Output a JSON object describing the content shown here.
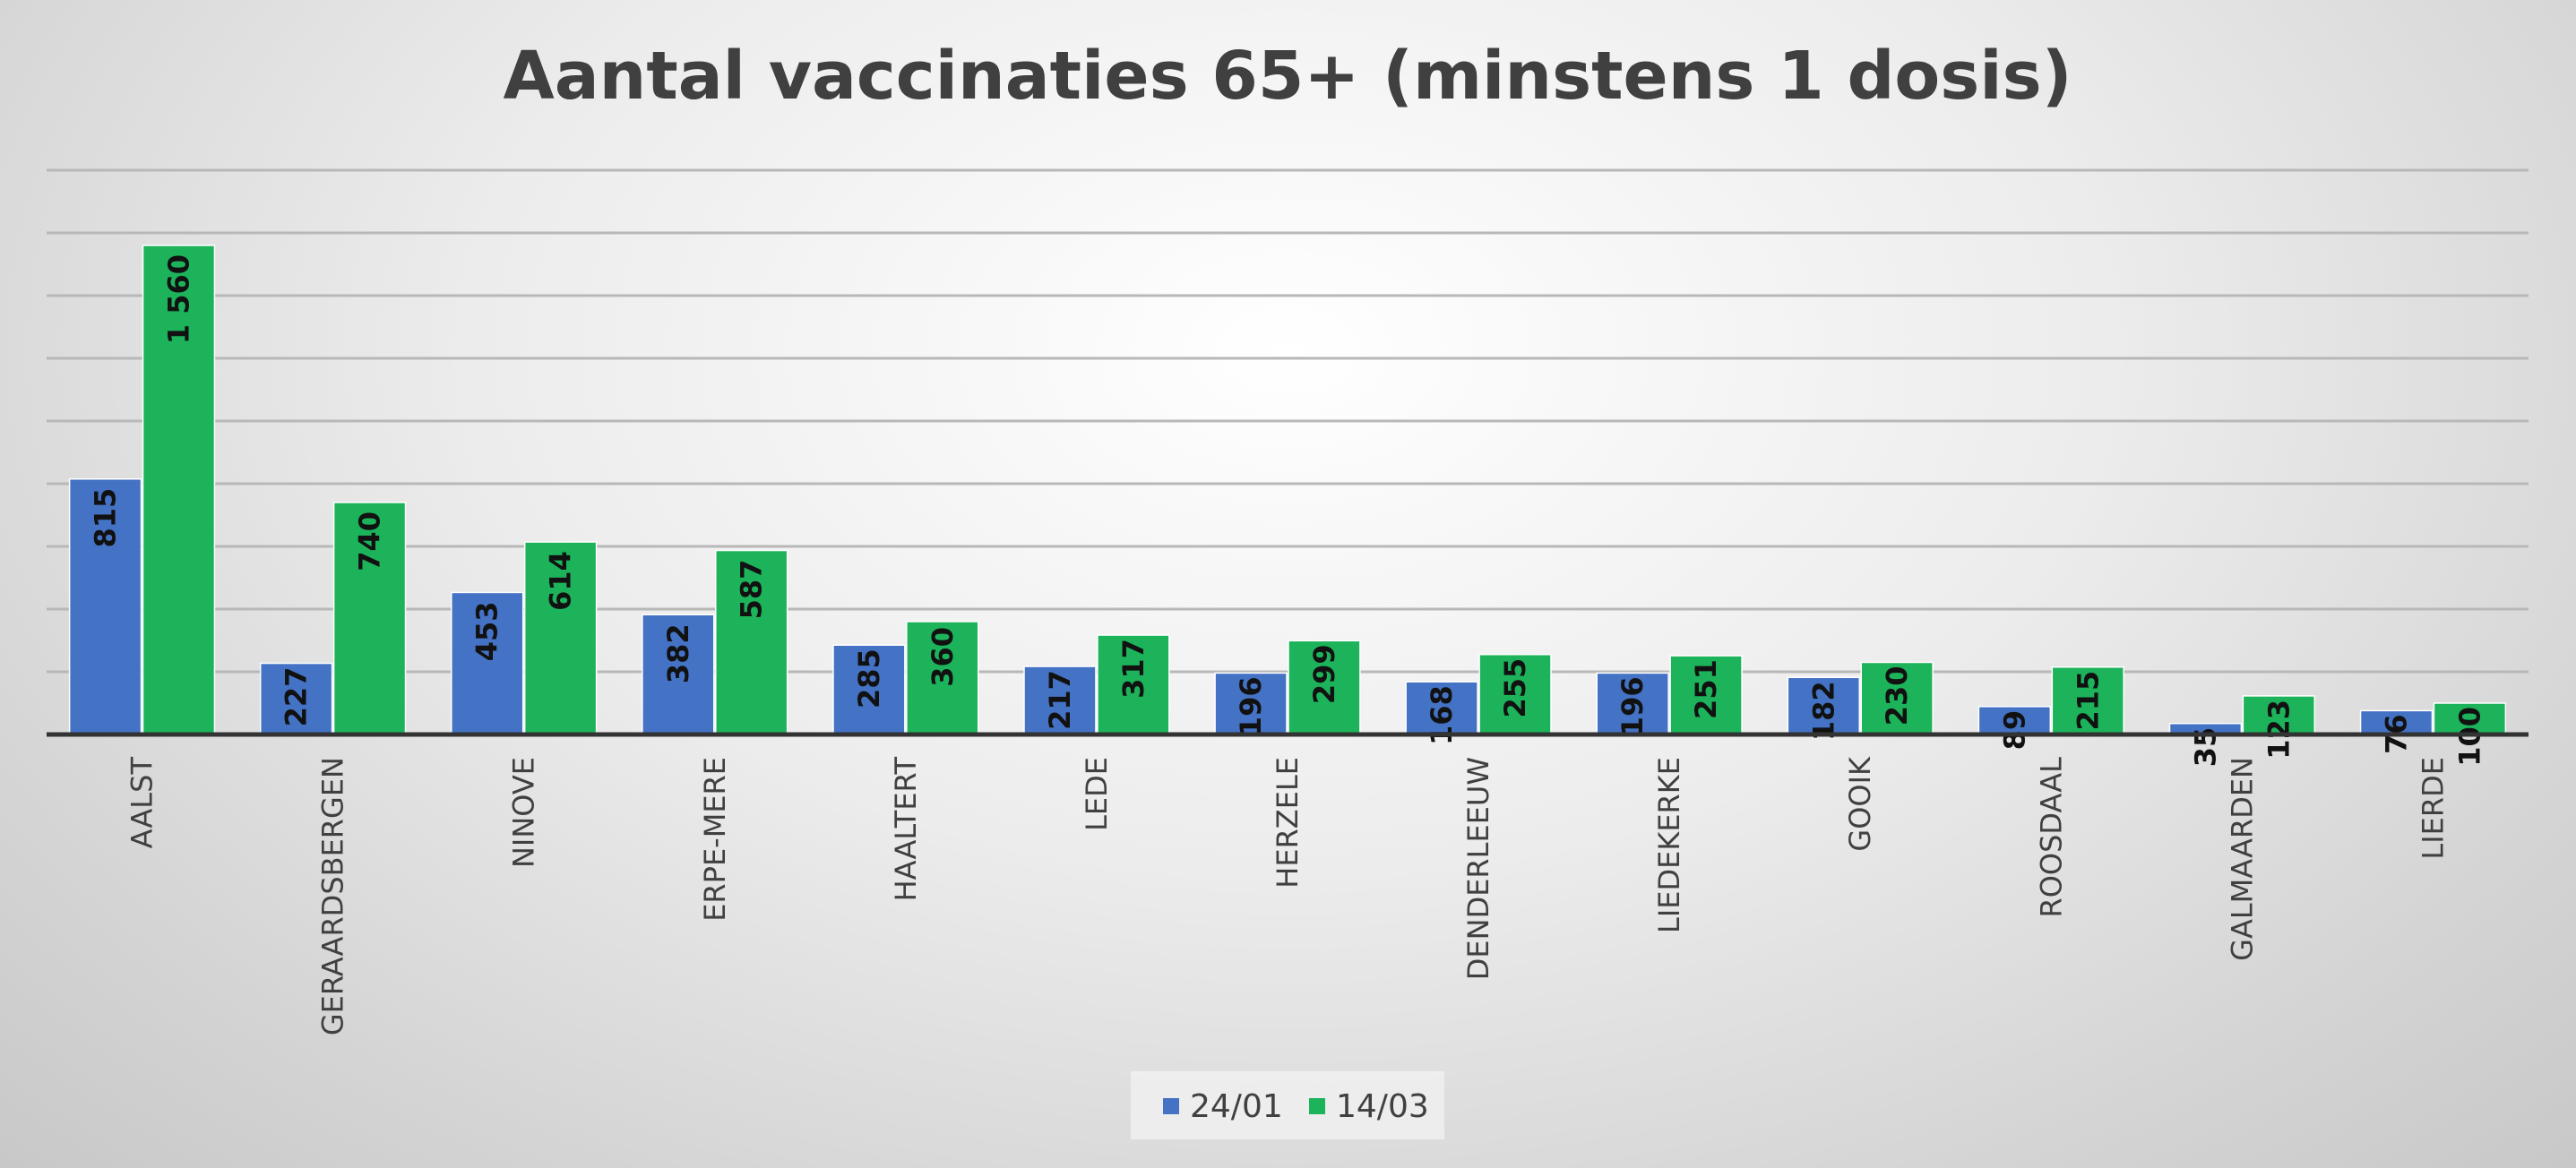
{
  "chart_data": {
    "type": "bar",
    "title": "Aantal vaccinaties 65+ (minstens 1 dosis)",
    "xlabel": "",
    "ylabel": "",
    "ylim": [
      0,
      1800
    ],
    "grid": true,
    "legend_position": "bottom",
    "categories": [
      "AALST",
      "GERAARDSBERGEN",
      "NINOVE",
      "ERPE-MERE",
      "HAALTERT",
      "LEDE",
      "HERZELE",
      "DENDERLEEUW",
      "LIEDEKERKE",
      "GOOIK",
      "ROOSDAAL",
      "GALMAARDEN",
      "LIERDE"
    ],
    "series": [
      {
        "name": "24/01",
        "color": "#4472C4",
        "values": [
          815,
          227,
          453,
          382,
          285,
          217,
          196,
          168,
          196,
          182,
          89,
          35,
          76
        ],
        "labels": [
          "815",
          "227",
          "453",
          "382",
          "285",
          "217",
          "196",
          "168",
          "196",
          "182",
          "89",
          "35",
          "76"
        ]
      },
      {
        "name": "14/03",
        "color": "#1DB35B",
        "values": [
          1560,
          740,
          614,
          587,
          360,
          317,
          299,
          255,
          251,
          230,
          215,
          123,
          100
        ],
        "labels": [
          "1 560",
          "740",
          "614",
          "587",
          "360",
          "317",
          "299",
          "255",
          "251",
          "230",
          "215",
          "123",
          "100"
        ]
      }
    ]
  }
}
